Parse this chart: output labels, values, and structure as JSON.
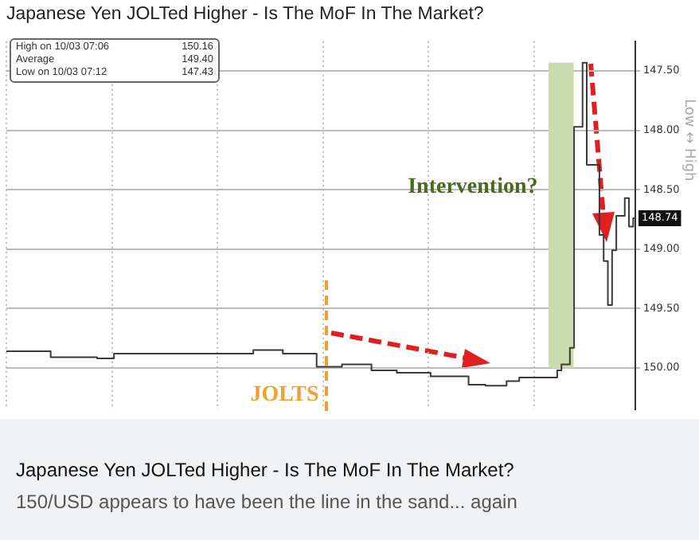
{
  "chart_data": {
    "type": "step",
    "title": "Japanese Yen JOLTed Higher - Is The MoF In The Market?",
    "subtitle": "150/USD appears to have been the line in the sand... again",
    "categories": [
      null,
      null,
      null,
      null,
      null,
      null,
      null,
      null,
      null,
      null,
      null,
      null,
      null,
      null,
      null,
      null,
      null,
      null,
      null,
      null,
      null,
      null,
      null,
      null,
      null,
      null,
      null,
      null,
      null,
      null,
      null,
      null,
      null,
      null,
      null,
      null,
      null,
      null,
      null,
      null,
      null,
      null,
      null,
      null,
      null,
      null,
      null,
      null,
      null,
      null,
      null,
      null,
      null,
      null,
      null,
      null,
      null,
      null,
      null,
      null,
      null,
      null,
      null,
      null,
      null,
      null,
      null,
      null,
      null,
      null,
      null,
      null,
      null,
      null,
      null,
      null,
      null,
      null,
      null,
      null,
      null,
      null,
      null,
      null,
      null,
      null,
      null,
      null,
      null,
      null,
      null,
      null,
      null,
      null,
      null,
      null,
      null,
      null,
      null,
      null,
      null,
      null,
      null,
      null,
      null,
      null,
      null,
      null,
      null,
      null,
      null,
      null,
      null,
      null,
      null,
      null,
      null,
      null,
      null,
      null,
      null,
      null,
      null,
      null,
      null,
      null,
      null,
      null,
      null,
      null,
      null,
      null,
      null,
      null,
      null,
      null,
      null,
      null,
      null,
      null,
      null,
      null,
      null,
      null,
      null,
      null,
      null,
      null,
      null,
      null
    ],
    "series": [
      {
        "color": "#3a3a3a",
        "values": [
          149.86,
          149.86,
          149.86,
          149.86,
          149.86,
          149.86,
          149.86,
          149.86,
          149.86,
          149.86,
          149.86,
          149.91,
          149.91,
          149.91,
          149.91,
          149.91,
          149.91,
          149.91,
          149.91,
          149.91,
          149.91,
          149.91,
          149.92,
          149.92,
          149.92,
          149.92,
          149.88,
          149.88,
          149.88,
          149.88,
          149.88,
          149.88,
          149.88,
          149.88,
          149.88,
          149.88,
          149.88,
          149.88,
          149.88,
          149.88,
          149.88,
          149.88,
          149.88,
          149.88,
          149.88,
          149.88,
          149.88,
          149.88,
          149.88,
          149.88,
          149.88,
          149.88,
          149.88,
          149.88,
          149.88,
          149.88,
          149.88,
          149.88,
          149.88,
          149.85,
          149.85,
          149.85,
          149.85,
          149.85,
          149.85,
          149.85,
          149.88,
          149.88,
          149.88,
          149.88,
          149.88,
          149.88,
          149.88,
          149.88,
          149.99,
          149.99,
          149.99,
          149.99,
          149.99,
          149.99,
          149.97,
          149.97,
          149.97,
          149.97,
          149.97,
          149.97,
          149.97,
          150.02,
          150.02,
          150.02,
          150.02,
          150.02,
          150.02,
          150.04,
          150.04,
          150.04,
          150.04,
          150.04,
          150.04,
          150.04,
          150.04,
          150.07,
          150.07,
          150.07,
          150.07,
          150.07,
          150.07,
          150.07,
          150.07,
          150.07,
          150.14,
          150.14,
          150.14,
          150.14,
          150.15,
          150.15,
          150.15,
          150.15,
          150.15,
          150.11,
          150.11,
          150.11,
          150.08,
          150.08,
          150.08,
          150.08,
          150.08,
          150.08,
          150.08,
          150.08,
          150.08,
          150.02,
          149.97,
          149.97,
          149.83,
          147.97,
          147.97,
          147.43,
          148.29,
          148.29,
          148.29,
          148.88,
          149.1,
          149.47,
          149.01,
          148.72,
          148.72,
          148.57,
          148.81,
          148.74
        ]
      }
    ],
    "ylim": [
      150.35,
      147.25
    ],
    "yticks": [
      {
        "value": 147.5,
        "label": "147.50"
      },
      {
        "value": 148,
        "label": "148.00"
      },
      {
        "value": 148.5,
        "label": "148.50"
      },
      {
        "value": 149,
        "label": "149.00"
      },
      {
        "value": 149.5,
        "label": "149.50"
      },
      {
        "value": 150,
        "label": "150.00"
      }
    ],
    "tick_labels": "y",
    "grid": true,
    "bands": [
      {
        "axis": "y",
        "from": 150.0,
        "to": 147.43,
        "color": "#c9dcae"
      }
    ],
    "annotations": [
      "Intervention?",
      {
        "text": "148.74",
        "y": 148.74
      },
      "Low ↔ High",
      "High on 10/03 07:06",
      "150.16",
      "Average",
      "149.40",
      "Low on 10/03 07:12",
      "147.43",
      "Japanese Yen JOLTed Higher - Is The MoF In The Market?",
      "JOLTS"
    ]
  }
}
